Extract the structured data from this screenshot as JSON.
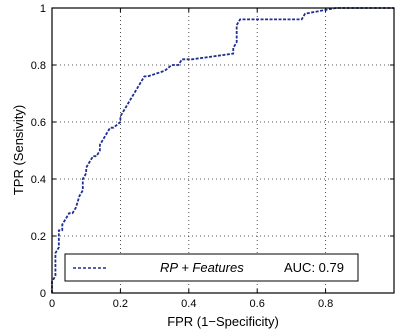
{
  "chart_data": {
    "type": "line",
    "xlabel": "FPR (1−Specificity)",
    "ylabel": "TPR (Sensivity)",
    "xlim": [
      0,
      1
    ],
    "ylim": [
      0,
      1
    ],
    "x_ticks": [
      "0",
      "0.2",
      "0.4",
      "0.6",
      "0.8"
    ],
    "y_ticks": [
      "0",
      "0.2",
      "0.4",
      "0.6",
      "0.8",
      "1"
    ],
    "grid": true,
    "legend": {
      "placement": "bottom",
      "series_label": "RP + Features",
      "auc_text": "AUC: 0.79"
    },
    "series": [
      {
        "name": "RP + Features",
        "color": "#1f2f8f",
        "line_style": "dashed",
        "x": [
          0,
          0,
          0.01,
          0.01,
          0.02,
          0.02,
          0.03,
          0.03,
          0.04,
          0.05,
          0.06,
          0.07,
          0.08,
          0.09,
          0.09,
          0.1,
          0.1,
          0.11,
          0.12,
          0.13,
          0.14,
          0.14,
          0.15,
          0.16,
          0.17,
          0.18,
          0.2,
          0.2,
          0.21,
          0.22,
          0.23,
          0.24,
          0.25,
          0.26,
          0.27,
          0.28,
          0.33,
          0.35,
          0.37,
          0.38,
          0.41,
          0.53,
          0.53,
          0.54,
          0.54,
          0.55,
          0.73,
          0.74,
          0.83,
          1.0
        ],
        "y": [
          0,
          0.04,
          0.06,
          0.14,
          0.16,
          0.22,
          0.22,
          0.24,
          0.26,
          0.28,
          0.28,
          0.3,
          0.34,
          0.36,
          0.4,
          0.42,
          0.44,
          0.46,
          0.48,
          0.48,
          0.5,
          0.52,
          0.54,
          0.56,
          0.58,
          0.58,
          0.6,
          0.62,
          0.64,
          0.66,
          0.68,
          0.7,
          0.72,
          0.74,
          0.76,
          0.76,
          0.78,
          0.8,
          0.8,
          0.82,
          0.82,
          0.84,
          0.86,
          0.88,
          0.94,
          0.96,
          0.96,
          0.98,
          1.0,
          1.0
        ]
      }
    ]
  }
}
